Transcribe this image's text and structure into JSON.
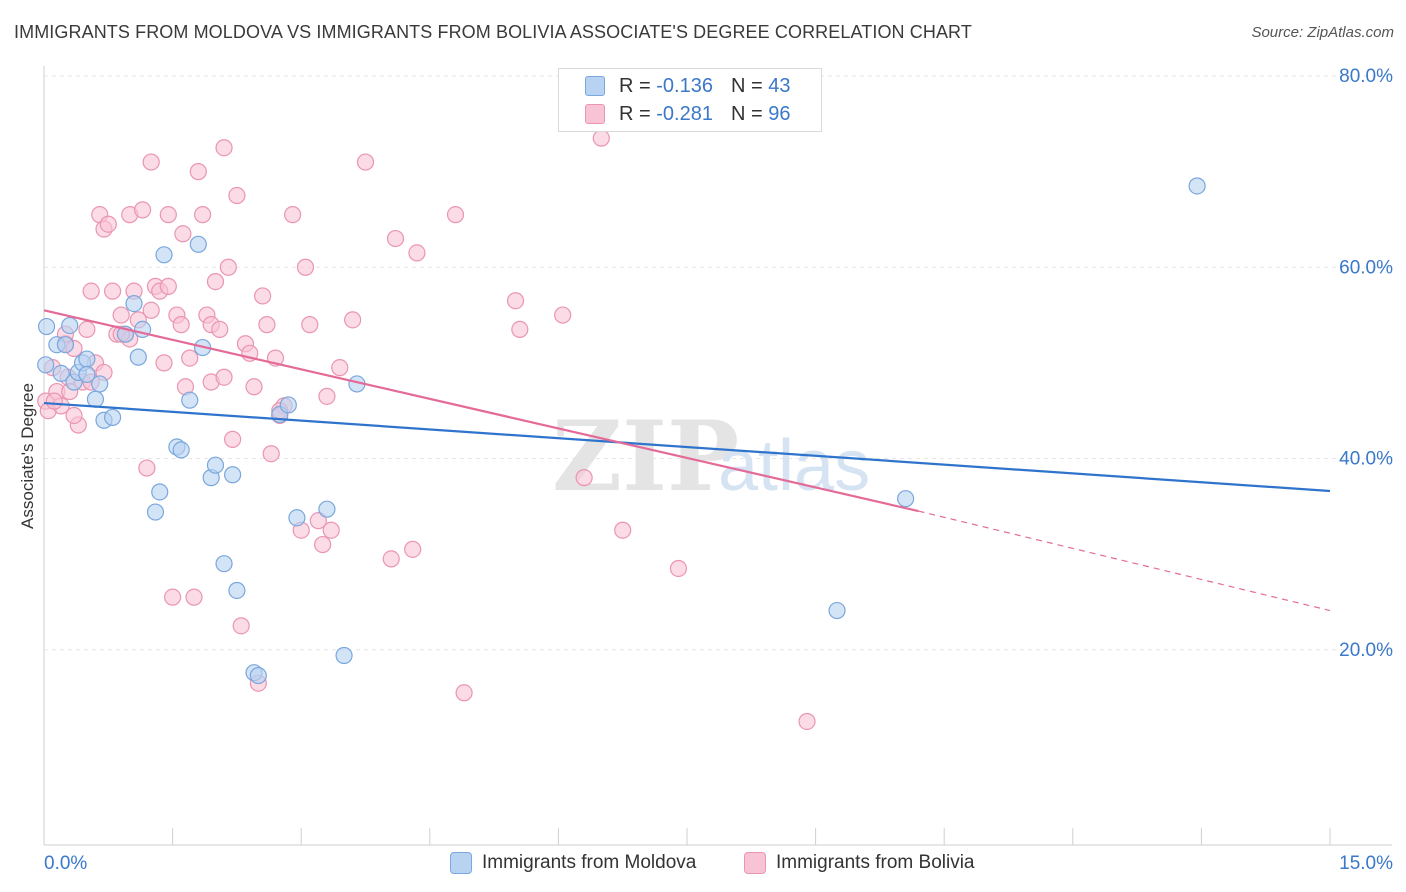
{
  "header": {
    "title": "IMMIGRANTS FROM MOLDOVA VS IMMIGRANTS FROM BOLIVIA ASSOCIATE'S DEGREE CORRELATION CHART",
    "source": "Source: ZipAtlas.com"
  },
  "legend": {
    "rows": [
      {
        "r_label": "R =",
        "r_value": "-0.136",
        "n_label": "N =",
        "n_value": "43"
      },
      {
        "r_label": "R =",
        "r_value": "-0.281",
        "n_label": "N =",
        "n_value": "96"
      }
    ],
    "series_labels": [
      "Immigrants from Moldova",
      "Immigrants from Bolivia"
    ]
  },
  "colors": {
    "moldova_fill": "#b8d2f2",
    "moldova_stroke": "#7aa7dc",
    "moldova_line": "#2f74cc",
    "bolivia_fill": "#f8c3d4",
    "bolivia_stroke": "#ea95b2",
    "bolivia_line": "#e46a98",
    "axis_label": "#3a78c9",
    "grid": "#e6e6e6"
  },
  "chart_data": {
    "type": "scatter",
    "title": "IMMIGRANTS FROM MOLDOVA VS IMMIGRANTS FROM BOLIVIA ASSOCIATE'S DEGREE CORRELATION CHART",
    "xlabel": "",
    "ylabel": "Associate's Degree",
    "xlim": [
      0,
      15
    ],
    "ylim": [
      0,
      80
    ],
    "x_tick_labels": [
      "0.0%",
      "15.0%"
    ],
    "y_ticks": [
      20,
      40,
      60,
      80
    ],
    "y_tick_labels": [
      "20.0%",
      "40.0%",
      "60.0%",
      "80.0%"
    ],
    "grid": true,
    "watermark": "ZIPatlas",
    "series": [
      {
        "name": "Immigrants from Moldova",
        "color": "#b8d2f2",
        "points": [
          [
            0.02,
            49.8
          ],
          [
            0.03,
            53.8
          ],
          [
            0.15,
            51.9
          ],
          [
            0.2,
            48.9
          ],
          [
            0.25,
            51.9
          ],
          [
            0.3,
            53.9
          ],
          [
            0.35,
            48.0
          ],
          [
            0.4,
            49.0
          ],
          [
            0.45,
            50.0
          ],
          [
            0.5,
            50.4
          ],
          [
            0.6,
            46.2
          ],
          [
            0.65,
            47.8
          ],
          [
            0.7,
            44.0
          ],
          [
            0.8,
            44.3
          ],
          [
            0.95,
            53.0
          ],
          [
            1.05,
            56.2
          ],
          [
            1.1,
            50.6
          ],
          [
            1.15,
            53.5
          ],
          [
            1.3,
            34.4
          ],
          [
            1.35,
            36.5
          ],
          [
            1.4,
            61.3
          ],
          [
            1.55,
            41.2
          ],
          [
            1.6,
            40.9
          ],
          [
            1.7,
            46.1
          ],
          [
            1.8,
            62.4
          ],
          [
            1.85,
            51.6
          ],
          [
            1.95,
            38.0
          ],
          [
            2.0,
            39.3
          ],
          [
            2.1,
            29.0
          ],
          [
            2.2,
            38.3
          ],
          [
            2.25,
            26.2
          ],
          [
            2.45,
            17.6
          ],
          [
            2.5,
            17.3
          ],
          [
            2.75,
            44.6
          ],
          [
            2.85,
            45.6
          ],
          [
            2.95,
            33.8
          ],
          [
            3.3,
            34.7
          ],
          [
            3.5,
            19.4
          ],
          [
            3.65,
            47.8
          ],
          [
            9.25,
            24.1
          ],
          [
            10.05,
            35.8
          ],
          [
            13.45,
            68.5
          ],
          [
            0.5,
            48.8
          ]
        ]
      },
      {
        "name": "Immigrants from Bolivia",
        "color": "#f8c3d4",
        "points": [
          [
            0.02,
            46.0
          ],
          [
            0.05,
            45.0
          ],
          [
            0.1,
            49.5
          ],
          [
            0.15,
            47.0
          ],
          [
            0.2,
            45.5
          ],
          [
            0.25,
            52.0
          ],
          [
            0.28,
            48.5
          ],
          [
            0.3,
            47.0
          ],
          [
            0.35,
            51.5
          ],
          [
            0.4,
            43.5
          ],
          [
            0.45,
            48.0
          ],
          [
            0.5,
            53.5
          ],
          [
            0.55,
            57.5
          ],
          [
            0.6,
            50.0
          ],
          [
            0.65,
            65.5
          ],
          [
            0.7,
            64.0
          ],
          [
            0.75,
            64.5
          ],
          [
            0.8,
            57.5
          ],
          [
            0.85,
            53.0
          ],
          [
            0.9,
            55.0
          ],
          [
            0.95,
            53.0
          ],
          [
            1.0,
            65.5
          ],
          [
            1.05,
            57.5
          ],
          [
            1.1,
            54.5
          ],
          [
            1.15,
            66.0
          ],
          [
            1.2,
            39.0
          ],
          [
            1.25,
            71.0
          ],
          [
            1.3,
            58.0
          ],
          [
            1.35,
            57.5
          ],
          [
            1.4,
            50.0
          ],
          [
            1.45,
            65.5
          ],
          [
            1.5,
            25.5
          ],
          [
            1.55,
            55.0
          ],
          [
            1.6,
            54.0
          ],
          [
            1.62,
            63.5
          ],
          [
            1.65,
            47.5
          ],
          [
            1.7,
            50.5
          ],
          [
            1.75,
            25.5
          ],
          [
            1.8,
            70.0
          ],
          [
            1.85,
            65.5
          ],
          [
            1.9,
            55.0
          ],
          [
            1.95,
            54.0
          ],
          [
            2.0,
            58.5
          ],
          [
            2.05,
            53.5
          ],
          [
            2.1,
            72.5
          ],
          [
            2.15,
            60.0
          ],
          [
            2.2,
            42.0
          ],
          [
            2.25,
            67.5
          ],
          [
            2.3,
            22.5
          ],
          [
            2.35,
            52.0
          ],
          [
            2.4,
            51.0
          ],
          [
            2.45,
            47.5
          ],
          [
            2.5,
            16.5
          ],
          [
            2.55,
            57.0
          ],
          [
            2.6,
            54.0
          ],
          [
            2.65,
            40.5
          ],
          [
            2.7,
            50.5
          ],
          [
            2.75,
            44.5
          ],
          [
            2.8,
            45.5
          ],
          [
            2.9,
            65.5
          ],
          [
            3.0,
            32.5
          ],
          [
            3.05,
            60.0
          ],
          [
            3.1,
            54.0
          ],
          [
            3.2,
            33.5
          ],
          [
            3.25,
            31.0
          ],
          [
            3.3,
            46.5
          ],
          [
            3.35,
            32.5
          ],
          [
            3.45,
            49.5
          ],
          [
            3.6,
            54.5
          ],
          [
            3.75,
            71.0
          ],
          [
            4.05,
            29.5
          ],
          [
            4.1,
            63.0
          ],
          [
            4.3,
            30.5
          ],
          [
            4.35,
            61.5
          ],
          [
            4.8,
            65.5
          ],
          [
            4.9,
            15.5
          ],
          [
            5.5,
            56.5
          ],
          [
            5.55,
            53.5
          ],
          [
            6.05,
            55.0
          ],
          [
            6.3,
            38.0
          ],
          [
            6.5,
            73.5
          ],
          [
            6.75,
            32.5
          ],
          [
            7.4,
            28.5
          ],
          [
            8.9,
            12.5
          ],
          [
            0.7,
            49.0
          ],
          [
            1.0,
            52.5
          ],
          [
            0.12,
            46.0
          ],
          [
            0.35,
            44.5
          ],
          [
            0.55,
            48.0
          ],
          [
            1.25,
            55.5
          ],
          [
            1.95,
            48.0
          ],
          [
            2.75,
            45.0
          ],
          [
            0.9,
            53.0
          ],
          [
            1.45,
            58.0
          ],
          [
            0.25,
            53.0
          ],
          [
            2.1,
            48.5
          ]
        ]
      }
    ],
    "trend_lines": [
      {
        "name": "Immigrants from Moldova",
        "from": [
          0,
          45.8
        ],
        "to": [
          15,
          36.6
        ],
        "style": "solid"
      },
      {
        "name": "Immigrants from Bolivia",
        "from": [
          0,
          55.5
        ],
        "to": [
          10.2,
          34.5
        ],
        "style": "solid"
      },
      {
        "name": "Immigrants from Bolivia",
        "from": [
          10.2,
          34.5
        ],
        "to": [
          15,
          24.1
        ],
        "style": "dashed"
      }
    ]
  }
}
